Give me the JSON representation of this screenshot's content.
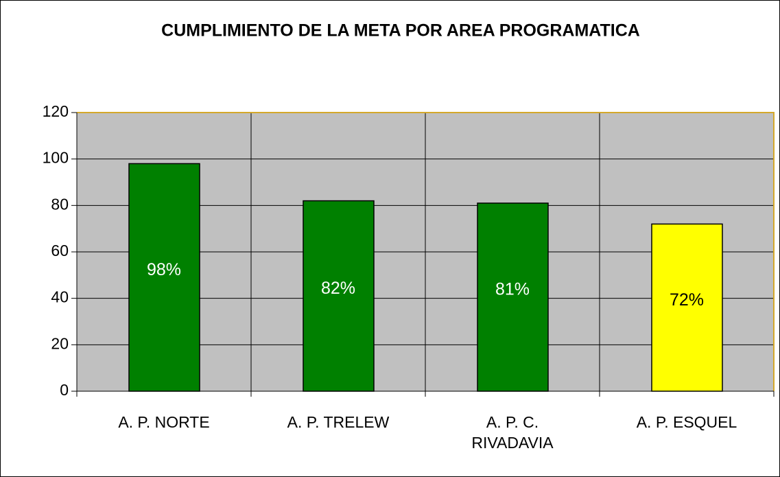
{
  "chart_data": {
    "type": "bar",
    "title": "CUMPLIMIENTO DE LA META POR AREA PROGRAMATICA",
    "categories": [
      "A. P. NORTE",
      "A. P. TRELEW",
      "A. P. C. RIVADAVIA",
      "A. P. ESQUEL"
    ],
    "values": [
      98,
      82,
      81,
      72
    ],
    "value_labels": [
      "98%",
      "82%",
      "81%",
      "72%"
    ],
    "colors": [
      "#008000",
      "#008000",
      "#008000",
      "#ffff00"
    ],
    "ylim": [
      0,
      120
    ],
    "yticks": [
      0,
      20,
      40,
      60,
      80,
      100,
      120
    ],
    "grid": true
  }
}
